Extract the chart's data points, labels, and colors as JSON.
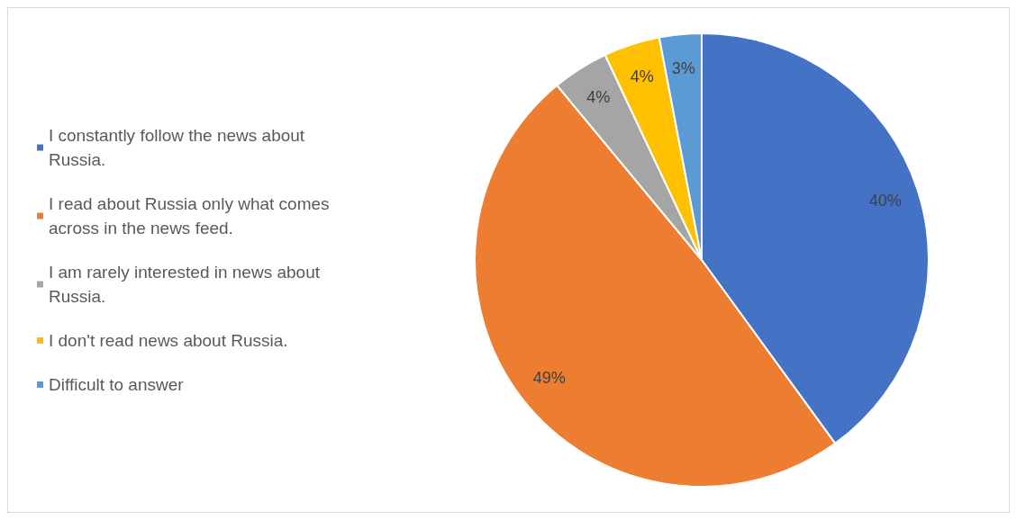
{
  "chart_data": {
    "type": "pie",
    "categories": [
      "I constantly follow the news about Russia.",
      "I read about Russia only what comes across in the news feed.",
      "I am rarely interested in news about Russia.",
      "I don't read news about Russia.",
      "Difficult to answer"
    ],
    "values": [
      40,
      49,
      4,
      4,
      3
    ],
    "colors": [
      "#4472c4",
      "#ed7d31",
      "#a5a5a5",
      "#ffc000",
      "#5b9bd5"
    ],
    "value_labels": [
      "40%",
      "49%",
      "4%",
      "4%",
      "3%"
    ],
    "legend": "left"
  }
}
